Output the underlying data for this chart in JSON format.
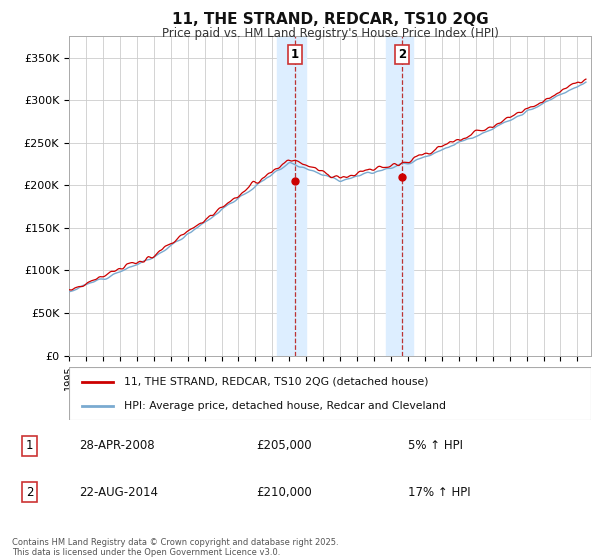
{
  "title": "11, THE STRAND, REDCAR, TS10 2QG",
  "subtitle": "Price paid vs. HM Land Registry's House Price Index (HPI)",
  "legend_line1": "11, THE STRAND, REDCAR, TS10 2QG (detached house)",
  "legend_line2": "HPI: Average price, detached house, Redcar and Cleveland",
  "annotation1_date": "28-APR-2008",
  "annotation1_price": "£205,000",
  "annotation1_hpi": "5% ↑ HPI",
  "annotation2_date": "22-AUG-2014",
  "annotation2_price": "£210,000",
  "annotation2_hpi": "17% ↑ HPI",
  "footer": "Contains HM Land Registry data © Crown copyright and database right 2025.\nThis data is licensed under the Open Government Licence v3.0.",
  "ylim": [
    0,
    375000
  ],
  "yticks": [
    0,
    50000,
    100000,
    150000,
    200000,
    250000,
    300000,
    350000
  ],
  "ytick_labels": [
    "£0",
    "£50K",
    "£100K",
    "£150K",
    "£200K",
    "£250K",
    "£300K",
    "£350K"
  ],
  "sale1_x": 2008.33,
  "sale1_y": 205000,
  "sale2_x": 2014.65,
  "sale2_y": 210000,
  "shade_x1_start": 2007.3,
  "shade_x1_end": 2009.0,
  "shade_x2_start": 2013.7,
  "shade_x2_end": 2015.3,
  "line_color_red": "#cc0000",
  "line_color_blue": "#7aaad0",
  "shade_color": "#ddeeff",
  "grid_color": "#cccccc",
  "xlim_start": 1995.0,
  "xlim_end": 2025.8
}
